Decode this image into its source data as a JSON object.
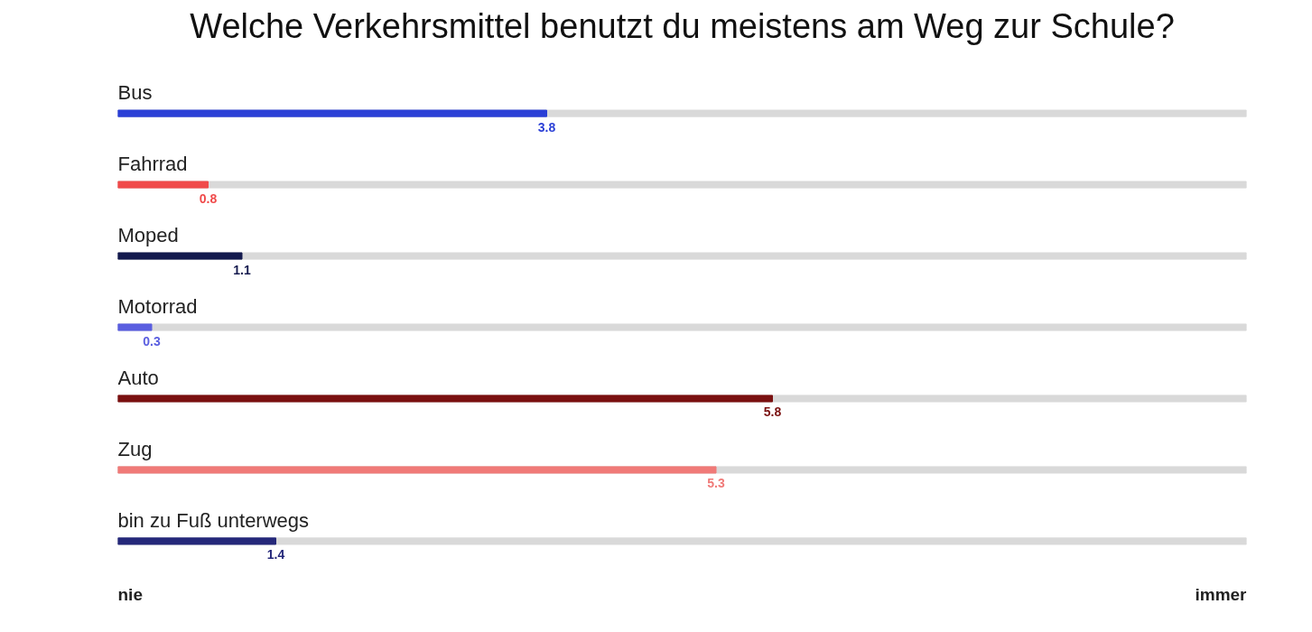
{
  "chart_data": {
    "type": "bar",
    "orientation": "horizontal",
    "title": "Welche Verkehrsmittel benutzt du meistens am Weg zur Schule?",
    "categories": [
      "Bus",
      "Fahrrad",
      "Moped",
      "Motorrad",
      "Auto",
      "Zug",
      "bin zu Fuß unterwegs"
    ],
    "values": [
      3.8,
      0.8,
      1.1,
      0.3,
      5.8,
      5.3,
      1.4
    ],
    "colors": [
      "#2a3fd6",
      "#f04a4a",
      "#141a4e",
      "#5a5ee0",
      "#7a1010",
      "#f07a78",
      "#25287a"
    ],
    "xlim": [
      0,
      10
    ],
    "annotations": [
      "nie",
      "immer"
    ],
    "data_labels": true
  }
}
